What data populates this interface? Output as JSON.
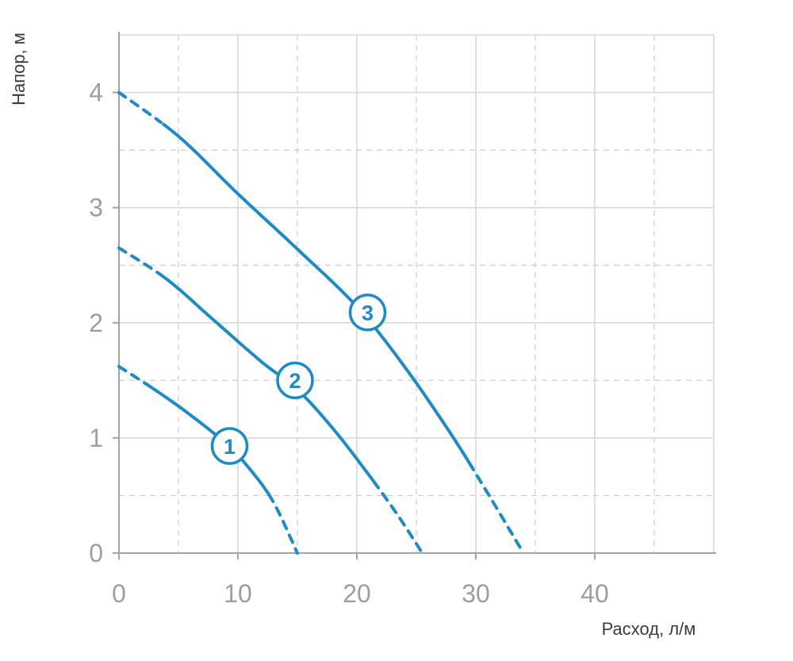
{
  "page": {
    "background": "#ffffff"
  },
  "chart_data": {
    "type": "line",
    "title": "",
    "xlabel": "Расход, л/м",
    "ylabel": "Напор, м",
    "xlim": [
      0,
      50
    ],
    "ylim": [
      0,
      4.5
    ],
    "xticks": [
      0,
      10,
      20,
      30,
      40
    ],
    "yticks": [
      0,
      1,
      2,
      3,
      4
    ],
    "x_minor_step": 5,
    "y_minor_step": 0.5,
    "grid": "major-solid, minor-dashed",
    "legend": "none",
    "colors": {
      "curve": "#1b8cc9",
      "grid_major": "#d9d9d9",
      "grid_minor": "#cccccc",
      "axis": "#a3a3a3",
      "tick_label": "#9e9e9e",
      "axis_label": "#3c3c3c",
      "marker_fill": "#ffffff"
    },
    "series": [
      {
        "name": "1",
        "points": [
          [
            0,
            1.62
          ],
          [
            3,
            1.42
          ],
          [
            6,
            1.2
          ],
          [
            9,
            0.95
          ],
          [
            11,
            0.73
          ],
          [
            13,
            0.44
          ],
          [
            15,
            0.0
          ]
        ],
        "solid_range": [
          2.6,
          12.6
        ],
        "label_at": [
          9.3,
          0.93
        ]
      },
      {
        "name": "2",
        "points": [
          [
            0,
            2.65
          ],
          [
            4,
            2.38
          ],
          [
            8,
            2.02
          ],
          [
            12,
            1.66
          ],
          [
            15,
            1.42
          ],
          [
            18,
            1.08
          ],
          [
            21,
            0.68
          ],
          [
            23.5,
            0.32
          ],
          [
            25.5,
            0.0
          ]
        ],
        "solid_range": [
          3.4,
          21.4
        ],
        "label_at": [
          14.8,
          1.5
        ]
      },
      {
        "name": "3",
        "points": [
          [
            0,
            4.0
          ],
          [
            5,
            3.62
          ],
          [
            10,
            3.12
          ],
          [
            15,
            2.64
          ],
          [
            20,
            2.14
          ],
          [
            24,
            1.62
          ],
          [
            28,
            1.02
          ],
          [
            31,
            0.52
          ],
          [
            34,
            0.0
          ]
        ],
        "solid_range": [
          3.6,
          29.4
        ],
        "label_at": [
          20.9,
          2.09
        ]
      }
    ]
  }
}
